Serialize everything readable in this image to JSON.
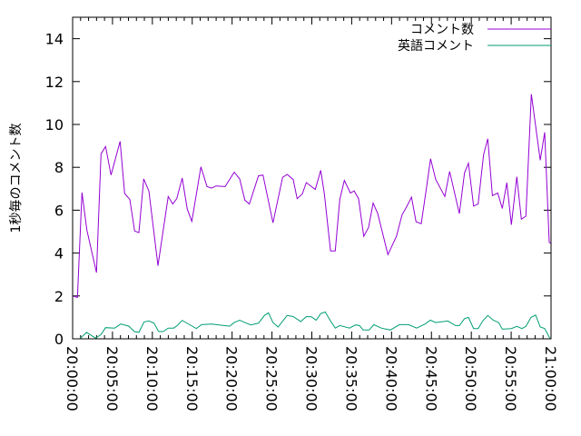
{
  "chart_data": {
    "type": "line",
    "title": "",
    "xlabel": "",
    "ylabel": "1秒毎のコメント数",
    "xlim_minutes_after_20_00": [
      0,
      60
    ],
    "ylim": [
      0,
      15
    ],
    "x_ticks": [
      {
        "minutes": 0,
        "label": "20:00:00"
      },
      {
        "minutes": 5,
        "label": "20:05:00"
      },
      {
        "minutes": 10,
        "label": "20:10:00"
      },
      {
        "minutes": 15,
        "label": "20:15:00"
      },
      {
        "minutes": 20,
        "label": "20:20:00"
      },
      {
        "minutes": 25,
        "label": "20:25:00"
      },
      {
        "minutes": 30,
        "label": "20:30:00"
      },
      {
        "minutes": 35,
        "label": "20:35:00"
      },
      {
        "minutes": 40,
        "label": "20:40:00"
      },
      {
        "minutes": 45,
        "label": "20:45:00"
      },
      {
        "minutes": 50,
        "label": "20:50:00"
      },
      {
        "minutes": 55,
        "label": "20:55:00"
      },
      {
        "minutes": 60,
        "label": "21:00:00"
      }
    ],
    "y_ticks": [
      "0",
      "2",
      "4",
      "6",
      "8",
      "10",
      "12",
      "14"
    ],
    "grid": false,
    "legend_position": "top-right",
    "series": [
      {
        "name": "コメント数",
        "color": "#9400d3",
        "points": [
          [
            0,
            2.0
          ],
          [
            0.6,
            1.93
          ],
          [
            1.17,
            6.82
          ],
          [
            1.79,
            5.07
          ],
          [
            2.99,
            3.09
          ],
          [
            3.56,
            8.63
          ],
          [
            4.13,
            8.97
          ],
          [
            4.82,
            7.64
          ],
          [
            5.95,
            9.21
          ],
          [
            6.52,
            6.78
          ],
          [
            7.17,
            6.5
          ],
          [
            7.78,
            5.03
          ],
          [
            8.31,
            4.95
          ],
          [
            8.91,
            7.46
          ],
          [
            9.56,
            6.9
          ],
          [
            10.7,
            3.41
          ],
          [
            11.99,
            6.64
          ],
          [
            12.56,
            6.29
          ],
          [
            13.06,
            6.54
          ],
          [
            13.74,
            7.5
          ],
          [
            14.38,
            6.05
          ],
          [
            14.95,
            5.48
          ],
          [
            16.09,
            8.02
          ],
          [
            16.85,
            7.1
          ],
          [
            17.42,
            7.03
          ],
          [
            17.99,
            7.13
          ],
          [
            19.13,
            7.1
          ],
          [
            20.27,
            7.77
          ],
          [
            20.95,
            7.46
          ],
          [
            21.6,
            6.47
          ],
          [
            22.17,
            6.29
          ],
          [
            23.31,
            7.6
          ],
          [
            23.88,
            7.64
          ],
          [
            25.13,
            5.41
          ],
          [
            26.33,
            7.53
          ],
          [
            26.9,
            7.67
          ],
          [
            27.67,
            7.43
          ],
          [
            28.16,
            6.54
          ],
          [
            28.81,
            6.76
          ],
          [
            29.3,
            7.29
          ],
          [
            30.43,
            6.97
          ],
          [
            31.12,
            7.86
          ],
          [
            31.57,
            6.76
          ],
          [
            32.34,
            4.1
          ],
          [
            32.94,
            4.1
          ],
          [
            33.51,
            6.5
          ],
          [
            34.08,
            7.39
          ],
          [
            34.84,
            6.8
          ],
          [
            35.3,
            6.9
          ],
          [
            35.86,
            6.54
          ],
          [
            36.51,
            4.78
          ],
          [
            37.12,
            5.2
          ],
          [
            37.69,
            6.33
          ],
          [
            38.26,
            5.84
          ],
          [
            39.54,
            3.93
          ],
          [
            40.61,
            4.78
          ],
          [
            41.3,
            5.77
          ],
          [
            41.93,
            6.19
          ],
          [
            42.5,
            6.61
          ],
          [
            43.07,
            5.46
          ],
          [
            43.72,
            5.37
          ],
          [
            44.32,
            6.9
          ],
          [
            44.89,
            8.4
          ],
          [
            45.54,
            7.43
          ],
          [
            46.68,
            6.64
          ],
          [
            47.28,
            7.81
          ],
          [
            48.5,
            5.84
          ],
          [
            49.15,
            7.74
          ],
          [
            49.64,
            8.19
          ],
          [
            50.29,
            6.19
          ],
          [
            50.86,
            6.29
          ],
          [
            51.54,
            8.59
          ],
          [
            52.07,
            9.33
          ],
          [
            52.64,
            6.68
          ],
          [
            53.32,
            6.8
          ],
          [
            53.89,
            6.08
          ],
          [
            54.46,
            7.28
          ],
          [
            55.03,
            5.32
          ],
          [
            55.71,
            7.56
          ],
          [
            56.28,
            5.58
          ],
          [
            56.85,
            5.72
          ],
          [
            57.53,
            11.41
          ],
          [
            58.64,
            8.33
          ],
          [
            59.2,
            9.63
          ],
          [
            59.77,
            4.5
          ],
          [
            60,
            4.45
          ]
        ]
      },
      {
        "name": "英語コメント",
        "color": "#009e73",
        "points": [
          [
            0.91,
            0
          ],
          [
            1.74,
            0.3
          ],
          [
            2.88,
            0.03
          ],
          [
            3.56,
            0.2
          ],
          [
            4.13,
            0.52
          ],
          [
            5.27,
            0.5
          ],
          [
            6.03,
            0.69
          ],
          [
            7.06,
            0.59
          ],
          [
            7.74,
            0.34
          ],
          [
            8.31,
            0.3
          ],
          [
            8.96,
            0.79
          ],
          [
            9.56,
            0.83
          ],
          [
            10.21,
            0.73
          ],
          [
            10.78,
            0.34
          ],
          [
            11.35,
            0.34
          ],
          [
            11.99,
            0.5
          ],
          [
            12.67,
            0.5
          ],
          [
            13.13,
            0.62
          ],
          [
            13.74,
            0.86
          ],
          [
            14.38,
            0.72
          ],
          [
            15.52,
            0.48
          ],
          [
            16.17,
            0.66
          ],
          [
            17.42,
            0.69
          ],
          [
            18.37,
            0.65
          ],
          [
            19.7,
            0.59
          ],
          [
            20.27,
            0.76
          ],
          [
            20.95,
            0.87
          ],
          [
            21.6,
            0.76
          ],
          [
            22.35,
            0.65
          ],
          [
            23.31,
            0.73
          ],
          [
            24.06,
            1.09
          ],
          [
            24.56,
            1.21
          ],
          [
            25.13,
            0.76
          ],
          [
            25.77,
            0.55
          ],
          [
            26.9,
            1.09
          ],
          [
            27.67,
            1.04
          ],
          [
            28.61,
            0.8
          ],
          [
            29.3,
            1.04
          ],
          [
            29.94,
            1.03
          ],
          [
            30.55,
            0.87
          ],
          [
            31.12,
            1.18
          ],
          [
            31.69,
            1.25
          ],
          [
            32.34,
            0.83
          ],
          [
            32.94,
            0.5
          ],
          [
            33.51,
            0.62
          ],
          [
            34.73,
            0.5
          ],
          [
            35.49,
            0.65
          ],
          [
            35.98,
            0.62
          ],
          [
            36.43,
            0.41
          ],
          [
            37.2,
            0.41
          ],
          [
            37.77,
            0.66
          ],
          [
            38.71,
            0.5
          ],
          [
            39.85,
            0.41
          ],
          [
            40.99,
            0.66
          ],
          [
            42.13,
            0.66
          ],
          [
            43.15,
            0.5
          ],
          [
            44.21,
            0.69
          ],
          [
            44.86,
            0.87
          ],
          [
            45.54,
            0.76
          ],
          [
            47.06,
            0.83
          ],
          [
            48.01,
            0.62
          ],
          [
            48.5,
            0.62
          ],
          [
            49.15,
            0.94
          ],
          [
            49.64,
            1.0
          ],
          [
            50.29,
            0.48
          ],
          [
            50.86,
            0.48
          ],
          [
            51.43,
            0.83
          ],
          [
            52.07,
            1.09
          ],
          [
            52.75,
            0.87
          ],
          [
            53.43,
            0.76
          ],
          [
            53.89,
            0.45
          ],
          [
            55.03,
            0.48
          ],
          [
            55.71,
            0.58
          ],
          [
            56.36,
            0.48
          ],
          [
            56.85,
            0.58
          ],
          [
            57.5,
            1.0
          ],
          [
            58.07,
            1.11
          ],
          [
            58.64,
            0.55
          ],
          [
            59.2,
            0.48
          ],
          [
            59.89,
            0
          ]
        ]
      }
    ]
  }
}
